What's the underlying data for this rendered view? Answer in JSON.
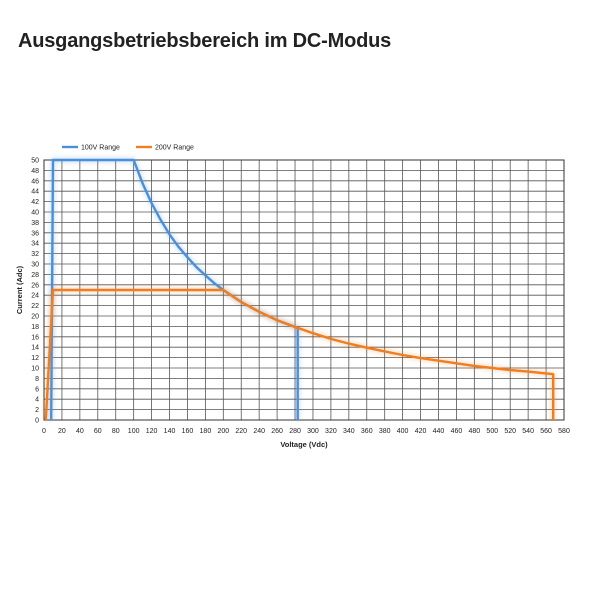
{
  "page": {
    "title": "Ausgangsbetriebsbereich im DC-Modus"
  },
  "chart_data": {
    "type": "line",
    "xlabel": "Voltage (Vdc)",
    "ylabel": "Current (Adc)",
    "xlim": [
      0,
      580
    ],
    "ylim": [
      0,
      50
    ],
    "x_ticks": [
      0,
      20,
      40,
      60,
      80,
      100,
      120,
      140,
      160,
      180,
      200,
      220,
      240,
      260,
      280,
      300,
      320,
      340,
      360,
      380,
      400,
      420,
      440,
      460,
      480,
      500,
      520,
      540,
      560,
      580
    ],
    "y_ticks": [
      0,
      2,
      4,
      6,
      8,
      10,
      12,
      14,
      16,
      18,
      20,
      22,
      24,
      26,
      28,
      30,
      32,
      34,
      36,
      38,
      40,
      42,
      44,
      46,
      48,
      50
    ],
    "grid": true,
    "legend_position": "top-left",
    "series": [
      {
        "name": "100V Range",
        "color": "#4a90d9",
        "points": [
          [
            8,
            0
          ],
          [
            10,
            50
          ],
          [
            100,
            50
          ],
          [
            110,
            45.5
          ],
          [
            120,
            41.7
          ],
          [
            130,
            38.5
          ],
          [
            140,
            35.7
          ],
          [
            150,
            33.3
          ],
          [
            160,
            31.3
          ],
          [
            170,
            29.4
          ],
          [
            180,
            27.8
          ],
          [
            190,
            26.3
          ],
          [
            200,
            25
          ],
          [
            220,
            22.7
          ],
          [
            240,
            20.8
          ],
          [
            260,
            19.2
          ],
          [
            283,
            17.7
          ],
          [
            283,
            0
          ]
        ]
      },
      {
        "name": "200V Range",
        "color": "#f07d1e",
        "points": [
          [
            2,
            0
          ],
          [
            10,
            25
          ],
          [
            200,
            25
          ],
          [
            220,
            22.7
          ],
          [
            240,
            20.8
          ],
          [
            260,
            19.2
          ],
          [
            280,
            17.9
          ],
          [
            300,
            16.7
          ],
          [
            320,
            15.6
          ],
          [
            340,
            14.7
          ],
          [
            360,
            13.9
          ],
          [
            380,
            13.2
          ],
          [
            400,
            12.5
          ],
          [
            420,
            11.9
          ],
          [
            440,
            11.4
          ],
          [
            460,
            10.9
          ],
          [
            480,
            10.4
          ],
          [
            500,
            10
          ],
          [
            520,
            9.6
          ],
          [
            540,
            9.3
          ],
          [
            568,
            8.8
          ],
          [
            568,
            0
          ]
        ]
      }
    ]
  }
}
